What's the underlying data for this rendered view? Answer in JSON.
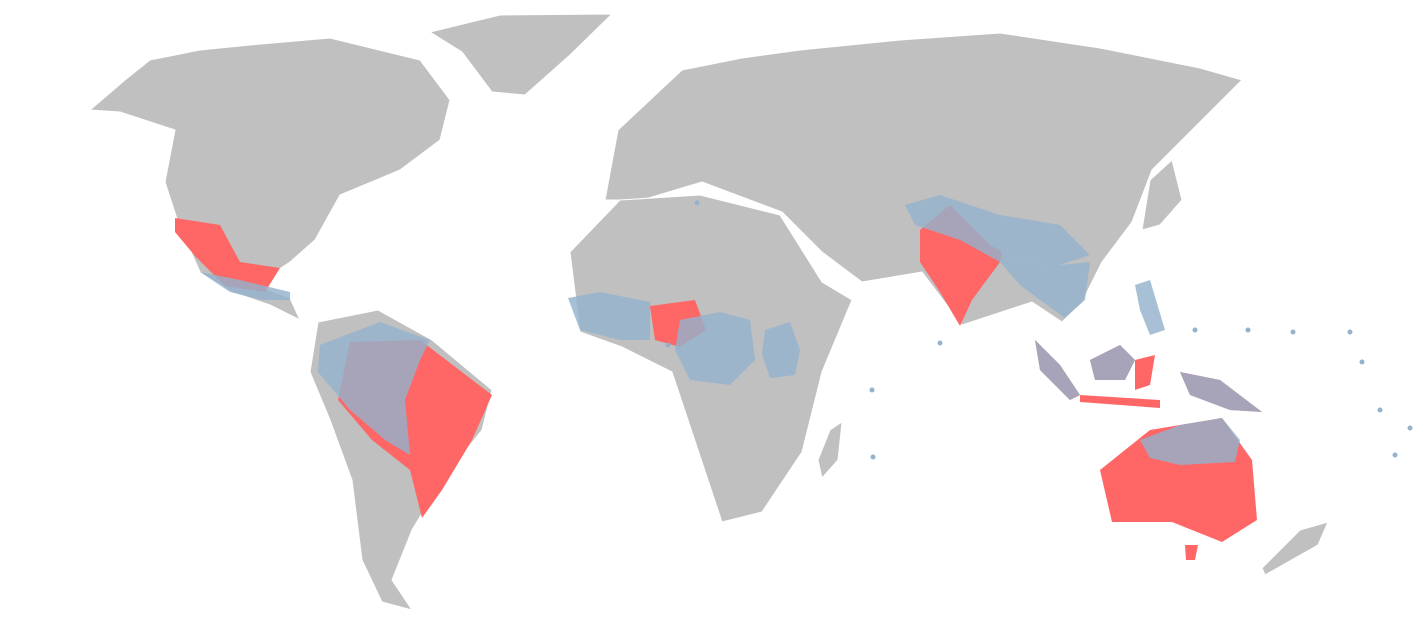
{
  "map": {
    "colors": {
      "background": "#ffffff",
      "land": "#c0c0c0",
      "border": "#ffffff",
      "highlight_red": "#ff6666",
      "overlay_blue": "#94b2cc",
      "overlay_blue_opacity": 0.82
    }
  }
}
